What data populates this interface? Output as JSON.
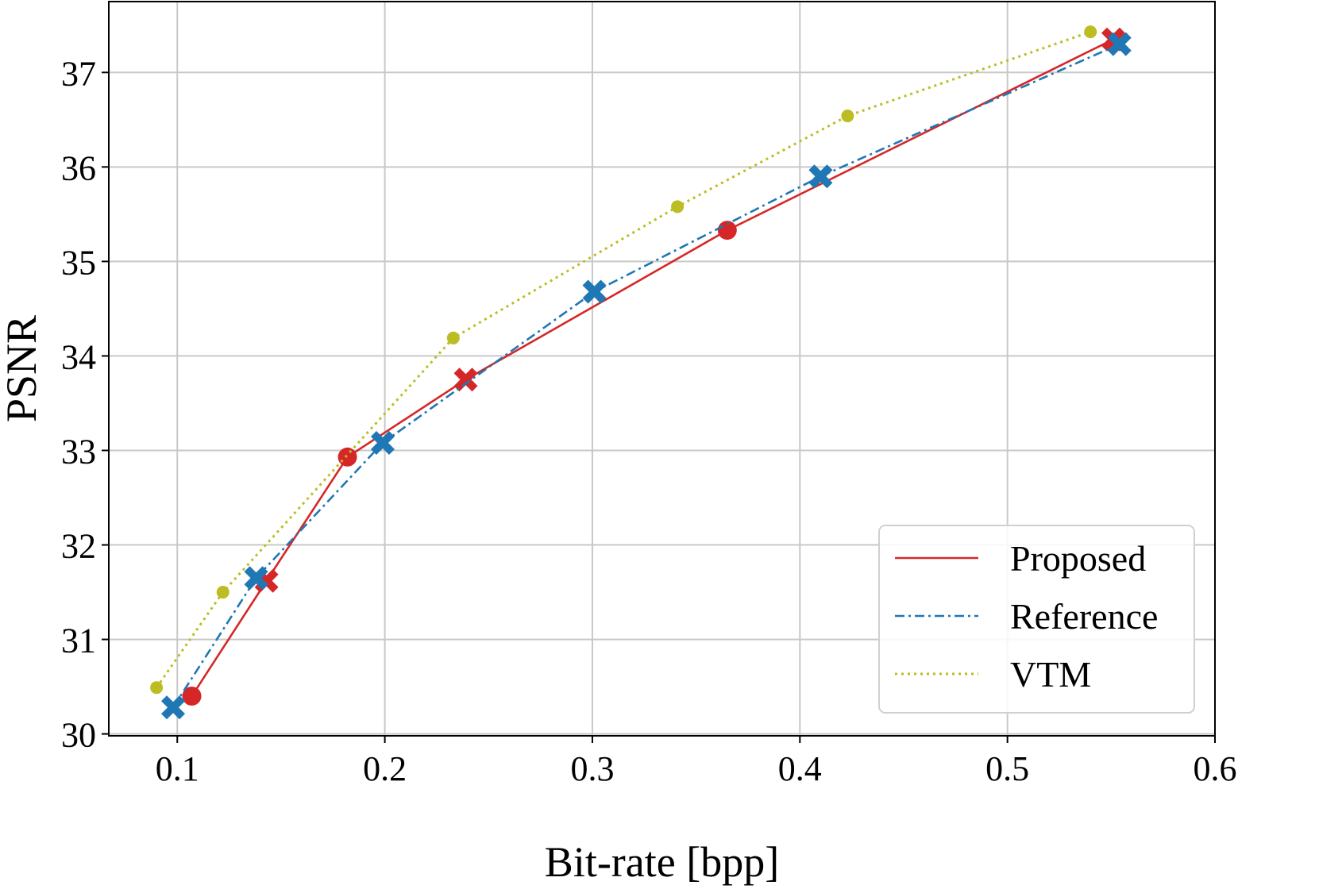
{
  "chart_data": {
    "type": "line",
    "title": "",
    "xlabel": "Bit-rate [bpp]",
    "ylabel": "PSNR",
    "xlim": [
      0.067,
      0.6
    ],
    "ylim": [
      29.98,
      37.75
    ],
    "xticks": [
      0.1,
      0.2,
      0.3,
      0.4,
      0.5,
      0.6
    ],
    "xtick_labels": [
      "0.1",
      "0.2",
      "0.3",
      "0.4",
      "0.5",
      "0.6"
    ],
    "yticks": [
      30,
      31,
      32,
      33,
      34,
      35,
      36,
      37
    ],
    "ytick_labels": [
      "30",
      "31",
      "32",
      "33",
      "34",
      "35",
      "36",
      "37"
    ],
    "grid": true,
    "legend_position": "lower-right",
    "series": [
      {
        "name": "Proposed",
        "color": "#d62728",
        "line_style": "solid",
        "x": [
          0.107,
          0.143,
          0.182,
          0.239,
          0.365,
          0.551
        ],
        "y": [
          30.4,
          31.62,
          32.93,
          33.75,
          35.33,
          37.35
        ],
        "markers": [
          "circle",
          "x",
          "circle",
          "x",
          "circle",
          "x"
        ]
      },
      {
        "name": "Reference",
        "color": "#1f77b4",
        "line_style": "dashdot",
        "x": [
          0.098,
          0.138,
          0.199,
          0.301,
          0.41,
          0.554
        ],
        "y": [
          30.28,
          31.65,
          33.08,
          34.68,
          35.9,
          37.3
        ],
        "markers": [
          "x",
          "x",
          "x",
          "x",
          "x",
          "x"
        ]
      },
      {
        "name": "VTM",
        "color": "#bcbd22",
        "line_style": "dotted",
        "x": [
          0.09,
          0.122,
          0.233,
          0.341,
          0.423,
          0.54
        ],
        "y": [
          30.49,
          31.5,
          34.19,
          35.58,
          36.54,
          37.43
        ],
        "markers": [
          "dot",
          "dot",
          "dot",
          "dot",
          "dot",
          "dot"
        ]
      }
    ]
  }
}
